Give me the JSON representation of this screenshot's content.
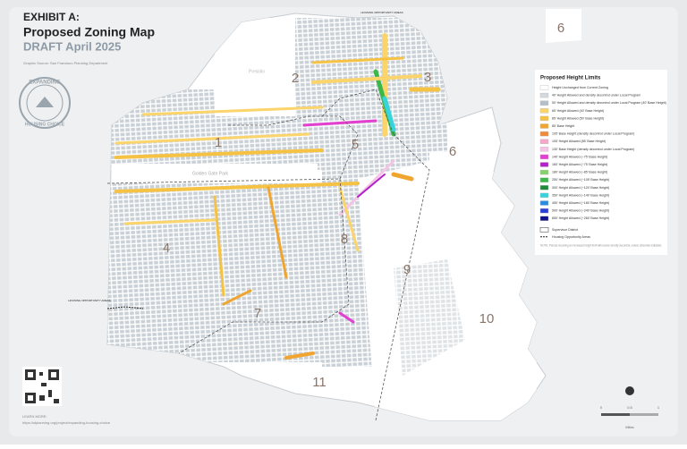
{
  "header": {
    "exhibit": "EXHIBIT A:",
    "title": "Proposed Zoning Map",
    "subtitle": "DRAFT April 2025",
    "source": "Graphic Source: San Francisco Planning Department"
  },
  "badge": {
    "top": "EXPANDING",
    "bottom": "HOUSING CHOICE"
  },
  "legend": {
    "title": "Proposed Height Limits",
    "items": [
      {
        "label": "Height Unchanged from Current Zoning",
        "color": "#ffffff"
      },
      {
        "label": "40' Height Allowed and density decontrol under Local Program",
        "color": "#d3d9de"
      },
      {
        "label": "50' Height Allowed and density decontrol under Local Program (40' Base Height)",
        "color": "#b4bfc8"
      },
      {
        "label": "65' Height Allowed (40' Base Height)",
        "color": "#fbd56b"
      },
      {
        "label": "85' Height Allowed (50' Base Height)",
        "color": "#f6c244"
      },
      {
        "label": "85' Base Height",
        "color": "#efa530"
      },
      {
        "label": "105' Base Height (density decontrol under Local Program)",
        "color": "#f08a3c"
      },
      {
        "label": "105' Height Allowed (85' Base Height)",
        "color": "#f6a6c8"
      },
      {
        "label": "130' Base Height (density decontrol under Local Program)",
        "color": "#f3c4e6"
      },
      {
        "label": "140' Height Allowed (~75' Base Height)",
        "color": "#e33fd0"
      },
      {
        "label": "160' Height Allowed (~75' Base Height)",
        "color": "#b321c9"
      },
      {
        "label": "180' Height Allowed (~85' Base Height)",
        "color": "#86d26a"
      },
      {
        "label": "250' Height Allowed (~105' Base Height)",
        "color": "#3cb84b"
      },
      {
        "label": "300' Height Allowed (~120' Base Height)",
        "color": "#1e8a3a"
      },
      {
        "label": "350' Height Allowed (~140' Base Height)",
        "color": "#38d4dc"
      },
      {
        "label": "450' Height Allowed (~180' Base Height)",
        "color": "#2a8be0"
      },
      {
        "label": "500' Height Allowed (~240' Base Height)",
        "color": "#2a3fd6"
      },
      {
        "label": "650' Height Allowed (~260' Base Height)",
        "color": "#10138a"
      }
    ],
    "district": "Supervisor District",
    "opportunity": "Housing Opportunity Areas",
    "note": "NOTE: Parcels receiving an increased height limit will receive density decontrol, unless otherwise indicated."
  },
  "districts": [
    "1",
    "2",
    "3",
    "4",
    "5",
    "6",
    "6",
    "7",
    "8",
    "9",
    "10",
    "11"
  ],
  "places": {
    "presidio": "Presidio",
    "park": "Golden Gate Park"
  },
  "callouts": [
    "HOUSING OPPORTUNITY AREAS",
    "HOUSING OPPORTUNITY AREAS"
  ],
  "learn_more": {
    "label": "LEARN MORE:",
    "url": "https://sfplanning.org/project/expanding-housing-choice"
  },
  "scale": {
    "ticks": [
      "0",
      "0.5",
      "1"
    ],
    "unit": "Miles"
  }
}
